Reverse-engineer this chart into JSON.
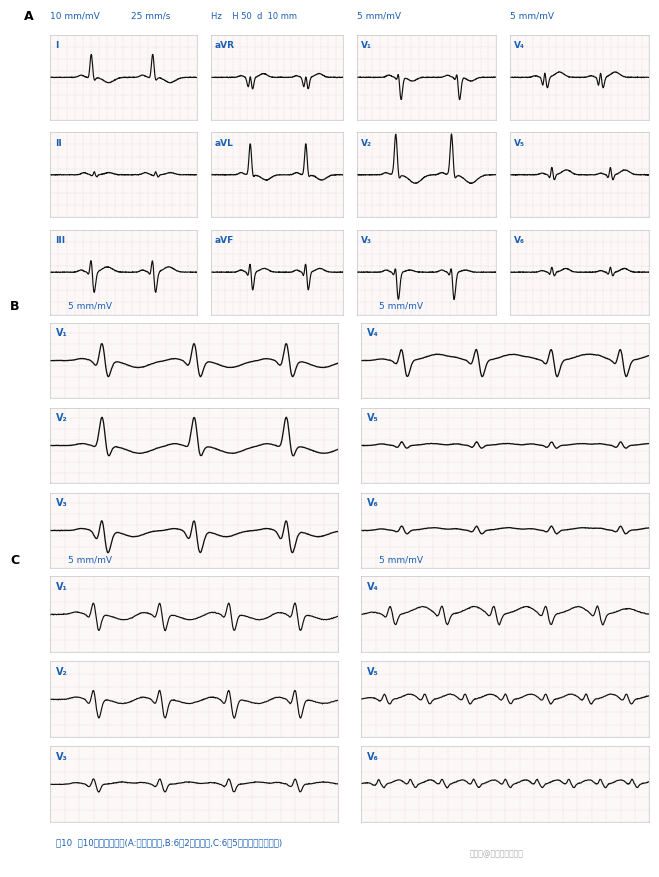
{
  "title": "图10  例10患者的心电图(A:入院时描记,B:6月2日时描记,C:6月5日心律转复后描记)",
  "watermark": "搜狐号@朱振振心电资讯",
  "background_color": "#ffffff",
  "grid_color": "#c8b8b8",
  "strip_bg": "#fdf8f8",
  "ecg_color": "#111111",
  "label_color": "#1a5fb4",
  "panel_A_label": "A",
  "panel_B_label": "B",
  "panel_C_label": "C",
  "panel_A_info1": "10 mm/mV",
  "panel_A_info2": "25 mm/s",
  "panel_A_info3": "Hz    H 50  d  10 mm",
  "scale_5mm": "5 mm/mV"
}
